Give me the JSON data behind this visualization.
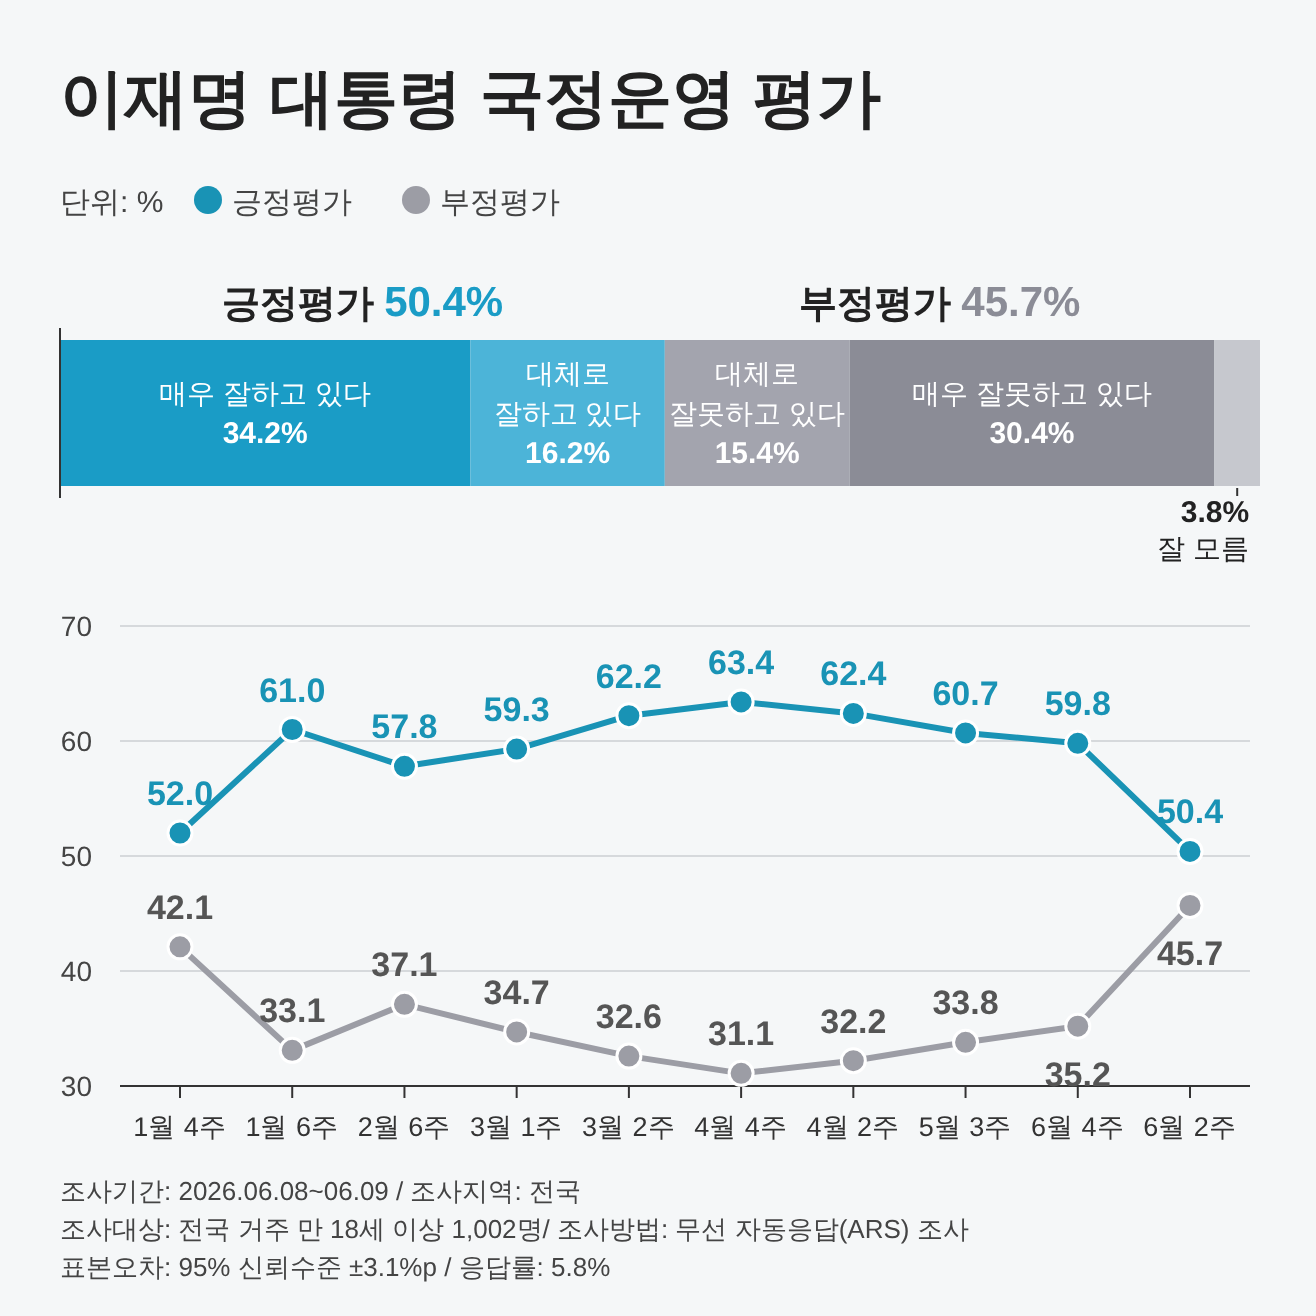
{
  "chart_data": [
    {
      "type": "bar",
      "orientation": "horizontal",
      "stacked": true,
      "title": "이재명 대통령 국정운영 평가",
      "subtitle": "단위: %",
      "categories": [
        null
      ],
      "series": [
        {
          "name": "매우 잘하고 있다",
          "color": "#1a9cc6",
          "values": [
            34.2
          ],
          "value_labels": [
            "34.2%"
          ]
        },
        {
          "name": "대체로 잘하고 있다",
          "color": "#4cb4d8",
          "values": [
            16.2
          ],
          "value_labels": [
            "16.2%"
          ]
        },
        {
          "name": "대체로 잘못하고 있다",
          "color": "#a3a4ae",
          "values": [
            15.4
          ],
          "value_labels": [
            "15.4%"
          ]
        },
        {
          "name": "매우 잘못하고 있다",
          "color": "#8b8c96",
          "values": [
            30.4
          ],
          "value_labels": [
            "30.4%"
          ]
        },
        {
          "name": "잘 모름",
          "color": "#c6c8ce",
          "values": [
            3.8
          ],
          "value_labels": [
            "3.8%"
          ]
        }
      ],
      "annotations": [
        "긍정평가 50.4%",
        "부정평가 45.7%"
      ]
    },
    {
      "type": "line",
      "categories": [
        "1월 4주",
        "1월 6주",
        "2월 6주",
        "3월 1주",
        "3월 2주",
        "4월 4주",
        "4월 2주",
        "5월 3주",
        "6월 4주",
        "6월 2주"
      ],
      "series": [
        {
          "name": "긍정평가",
          "color": "#1993b5",
          "values": [
            52.0,
            61.0,
            57.8,
            59.3,
            62.2,
            63.4,
            62.4,
            60.7,
            59.8,
            50.4
          ],
          "value_labels": [
            "52.0",
            "61.0",
            "57.8",
            "59.3",
            "62.2",
            "63.4",
            "62.4",
            "60.7",
            "59.8",
            "50.4"
          ]
        },
        {
          "name": "부정평가",
          "color": "#9c9da5",
          "values": [
            42.1,
            33.1,
            37.1,
            34.7,
            32.6,
            31.1,
            32.2,
            33.8,
            35.2,
            45.7
          ],
          "value_labels": [
            "42.1",
            "33.1",
            "37.1",
            "34.7",
            "32.6",
            "31.1",
            "32.2",
            "33.8",
            "35.2",
            "45.7"
          ]
        }
      ],
      "ylim": [
        30,
        70
      ],
      "yticks": [
        30,
        40,
        50,
        60,
        70
      ],
      "grid": "y",
      "marker": "circle",
      "line_style": "solid",
      "legend": "top left",
      "annotations": [
        "조사기간: 2026.06.08~06.09 / 조사지역: 전국",
        "조사대상: 전국 거주 만 18세 이상 1,002명/ 조사방법: 무선 자동응답(ARS) 조사",
        "표본오차: 95% 신뢰수준 ±3.1%p / 응답률: 5.8%"
      ]
    }
  ]
}
